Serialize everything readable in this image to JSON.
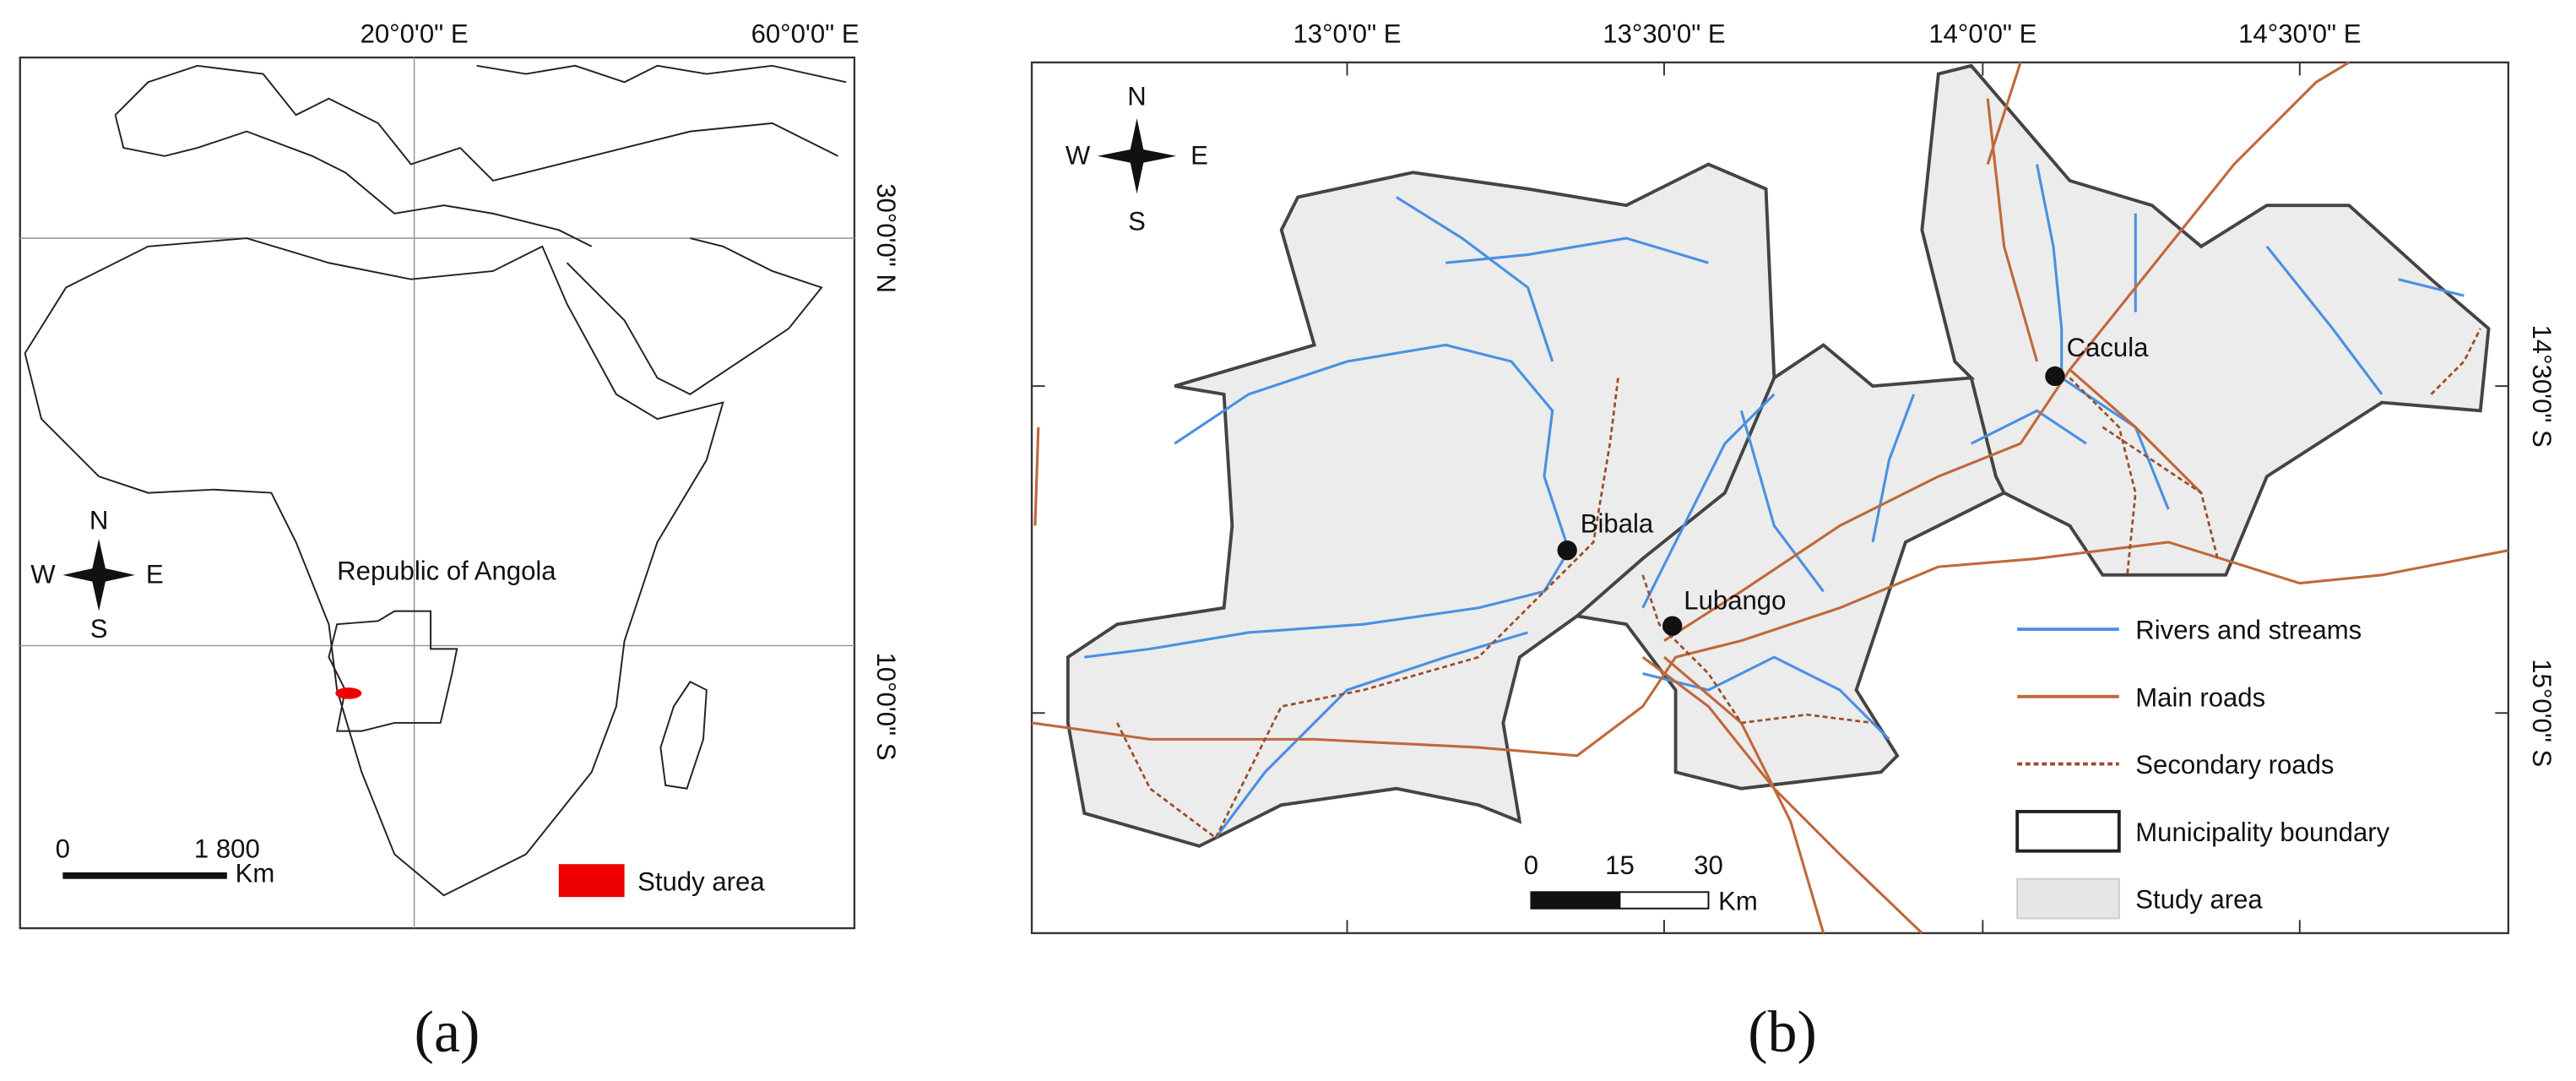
{
  "panel_a": {
    "longitude_labels": [
      "20°0'0\" E",
      "60°0'0\" E"
    ],
    "latitude_labels": [
      "30°0'0\" N",
      "10°0'0\" S"
    ],
    "compass": {
      "n": "N",
      "w": "W",
      "e": "E",
      "s": "S"
    },
    "country_label": "Republic of Angola",
    "scale": {
      "labels": [
        "0",
        "1 800"
      ],
      "unit": "Km"
    },
    "legend": {
      "study_area": "Study area"
    },
    "caption": "(a)"
  },
  "panel_b": {
    "longitude_labels": [
      "13°0'0\" E",
      "13°30'0\" E",
      "14°0'0\" E",
      "14°30'0\" E"
    ],
    "latitude_labels": [
      "14°30'0\" S",
      "15°0'0\" S"
    ],
    "compass": {
      "n": "N",
      "w": "W",
      "e": "E",
      "s": "S"
    },
    "towns": [
      "Cacula",
      "Bibala",
      "Lubango"
    ],
    "scale": {
      "labels": [
        "0",
        "15",
        "30"
      ],
      "unit": "Km"
    },
    "legend": [
      "Rivers and streams",
      "Main roads",
      "Secondary roads",
      "Municipality boundary",
      "Study area"
    ],
    "caption": "(b)"
  }
}
